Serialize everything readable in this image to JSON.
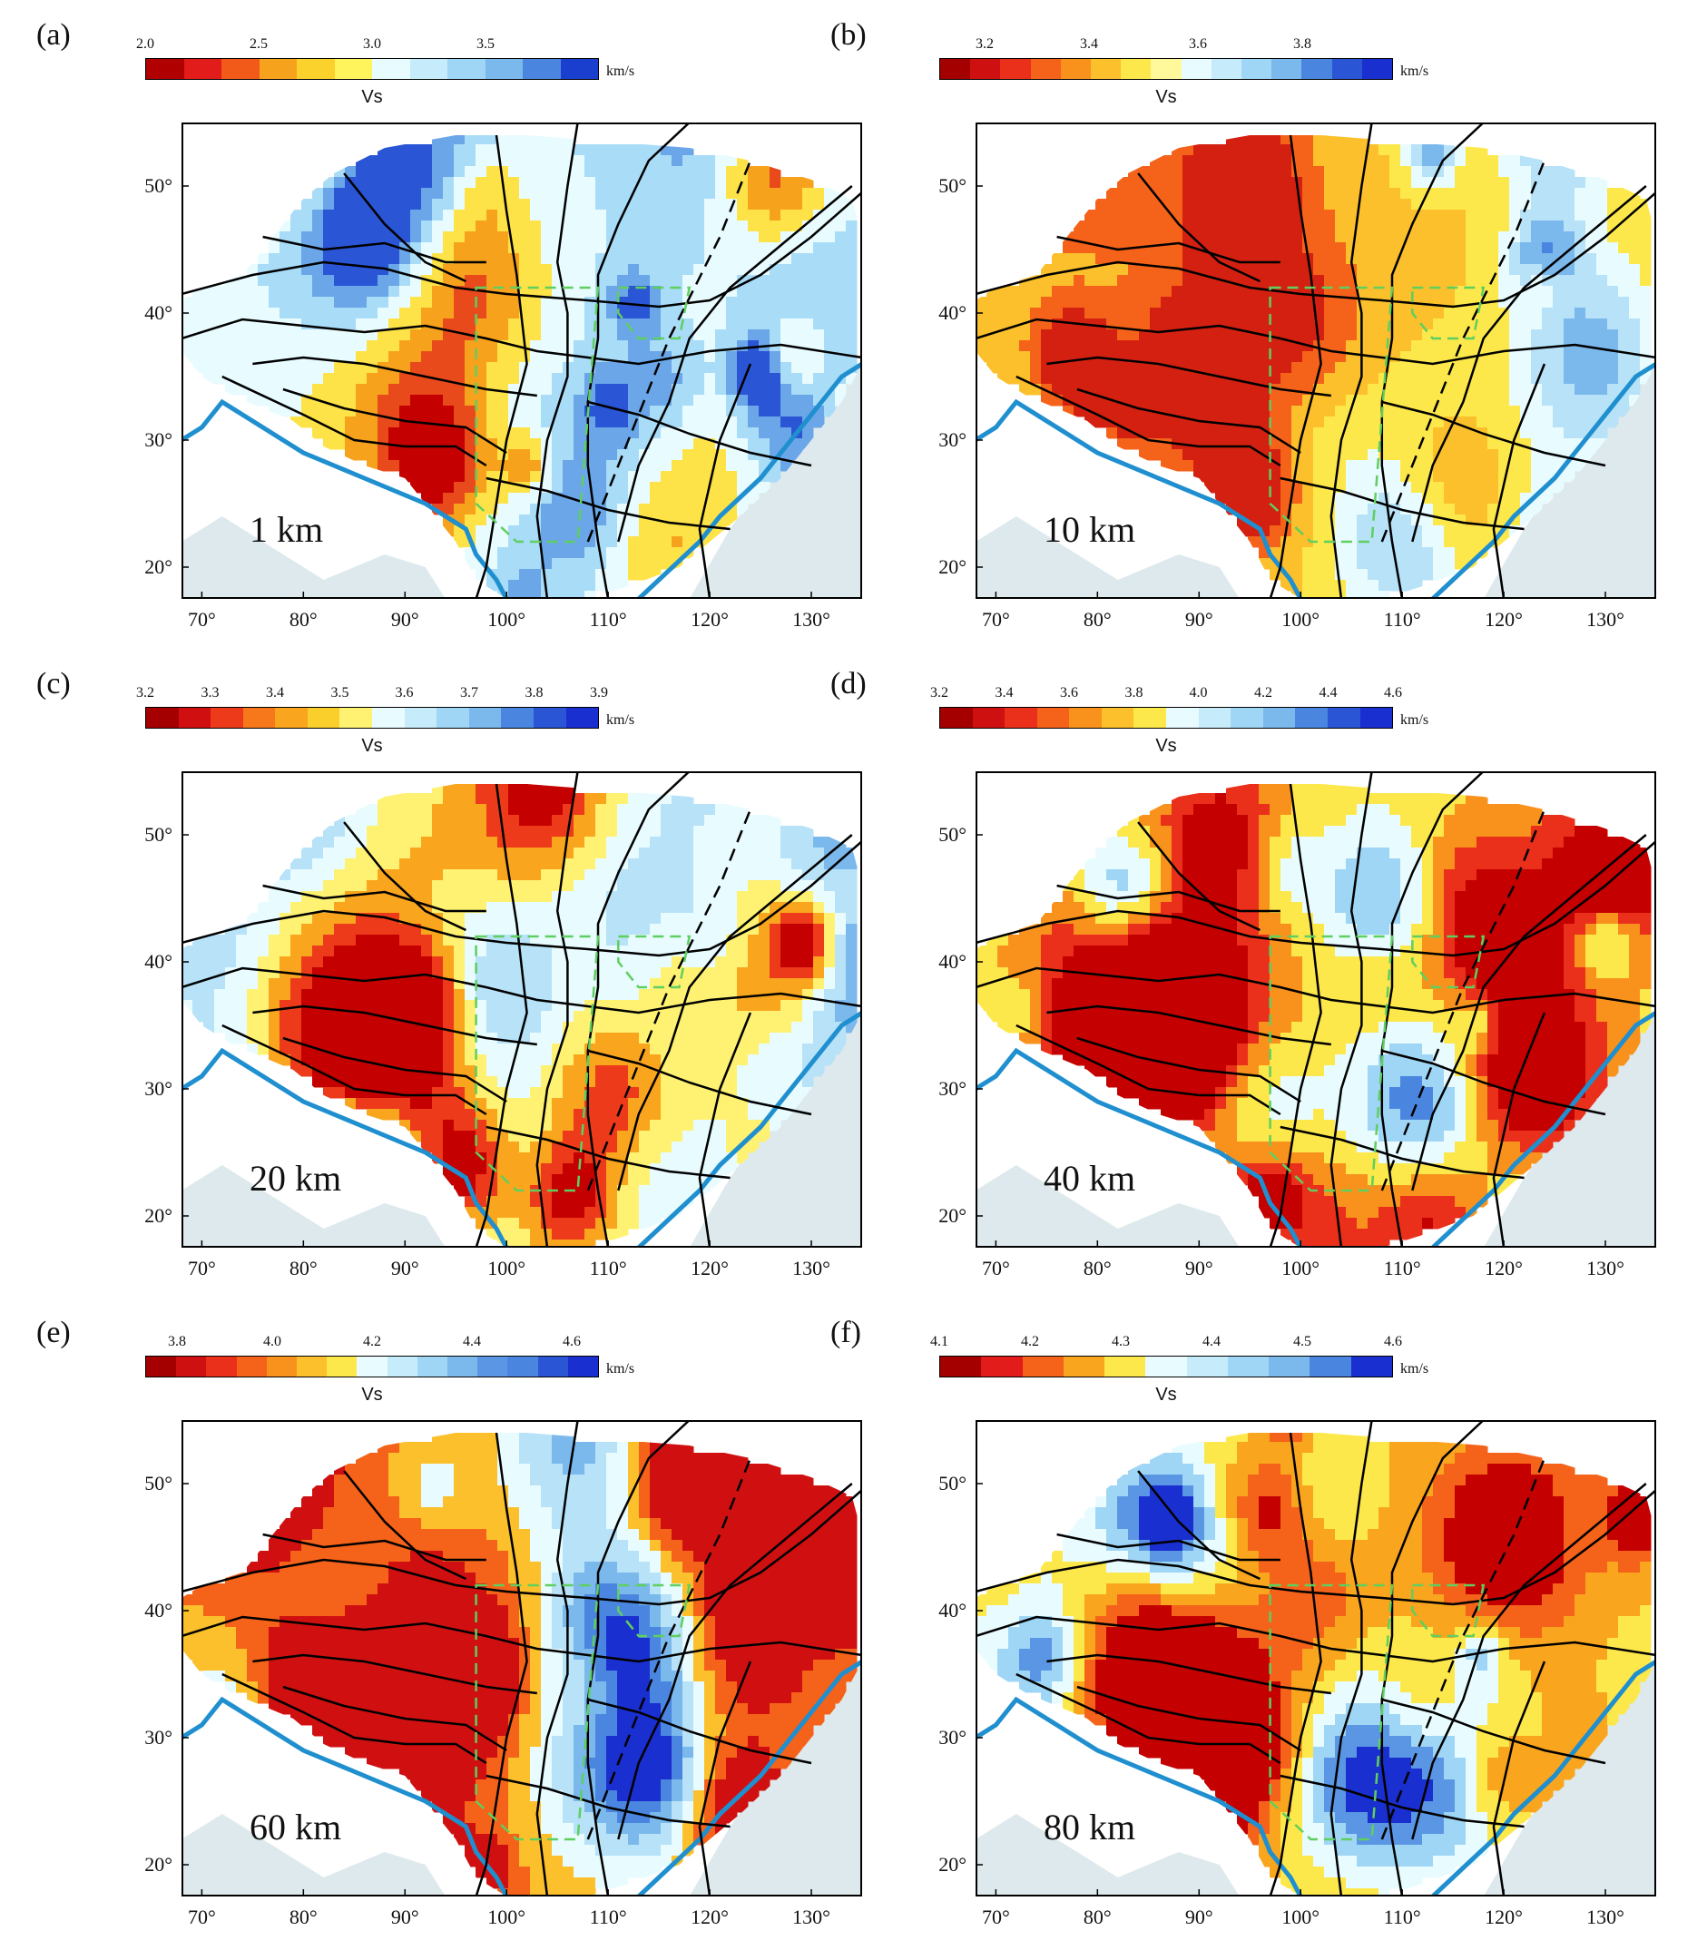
{
  "map_axes": {
    "lat_ticks": [
      "50°",
      "40°",
      "30°",
      "20°"
    ],
    "lon_ticks": [
      "70°",
      "80°",
      "90°",
      "100°",
      "110°",
      "120°",
      "130°"
    ],
    "lon_range": [
      68,
      135
    ],
    "lat_range": [
      17.5,
      55
    ]
  },
  "colors": {
    "ocean": "#ffffff",
    "land_outside": "#dde9ec",
    "coastline": "#1f8fcf",
    "faults": "#000000",
    "green_dashed": "#5fcf5f"
  },
  "panels": [
    {
      "label": "(a)",
      "depth": "1 km",
      "colorbar": {
        "ticks": [
          "2.0",
          "2.5",
          "3.0",
          "3.5"
        ],
        "tick_positions": [
          0,
          0.25,
          0.5,
          0.75
        ],
        "unit": "km/s",
        "title": "Vs",
        "colors": [
          "#b00000",
          "#e21b1b",
          "#f25a1a",
          "#f7a21c",
          "#fbd12b",
          "#fff45c",
          "#e8fbff",
          "#c6ecfb",
          "#9fd6f5",
          "#7bb8ec",
          "#4a86df",
          "#1a3fcf"
        ]
      },
      "field_palette": [
        "#c40000",
        "#e84a1c",
        "#f7a21c",
        "#fde347",
        "#e8fbff",
        "#a9dcf7",
        "#6aa6e8",
        "#2a55d5"
      ],
      "field_bias": 0.62
    },
    {
      "label": "(b)",
      "depth": "10 km",
      "colorbar": {
        "ticks": [
          "3.2",
          "3.4",
          "3.6",
          "3.8"
        ],
        "tick_positions": [
          0.1,
          0.33,
          0.57,
          0.8
        ],
        "unit": "km/s",
        "title": "Vs",
        "colors": [
          "#a50000",
          "#cf1010",
          "#ea2f1a",
          "#f5621a",
          "#f8921c",
          "#fbc02b",
          "#fde84b",
          "#fff99c",
          "#e8fbff",
          "#c6ecfb",
          "#9fd6f5",
          "#7bb8ec",
          "#4a86df",
          "#2a55d5",
          "#1a2fcf"
        ]
      },
      "field_palette": [
        "#d32010",
        "#f5621a",
        "#fbc02b",
        "#fde84b",
        "#e8fbff",
        "#b7e2f8",
        "#7bb8ec",
        "#4a86df"
      ],
      "field_bias": 0.35
    },
    {
      "label": "(c)",
      "depth": "20 km",
      "colorbar": {
        "ticks": [
          "3.2",
          "3.3",
          "3.4",
          "3.5",
          "3.6",
          "3.7",
          "3.8",
          "3.9"
        ],
        "tick_positions": [
          0,
          0.143,
          0.286,
          0.429,
          0.571,
          0.714,
          0.857,
          1
        ],
        "unit": "km/s",
        "title": "Vs",
        "colors": [
          "#a50000",
          "#d01010",
          "#ec3a1a",
          "#f6781b",
          "#f9a51e",
          "#fbcf2b",
          "#fff272",
          "#e8fbff",
          "#c6ecfb",
          "#9fd6f5",
          "#7bb8ec",
          "#4a86df",
          "#2a55d5",
          "#1a2fcf"
        ]
      },
      "field_palette": [
        "#c40000",
        "#ec3a1a",
        "#f9a51e",
        "#fff272",
        "#e8fbff",
        "#b7e2f8",
        "#7bb8ec",
        "#3a6fd8"
      ],
      "field_bias": 0.45
    },
    {
      "label": "(d)",
      "depth": "40 km",
      "colorbar": {
        "ticks": [
          "3.2",
          "3.4",
          "3.6",
          "3.8",
          "4.0",
          "4.2",
          "4.4",
          "4.6"
        ],
        "tick_positions": [
          0,
          0.143,
          0.286,
          0.429,
          0.571,
          0.714,
          0.857,
          1
        ],
        "unit": "km/s",
        "title": "Vs",
        "colors": [
          "#a50000",
          "#cf1010",
          "#ea2f1a",
          "#f5621a",
          "#f8921c",
          "#fbc02b",
          "#fde84b",
          "#e8fbff",
          "#c6ecfb",
          "#9fd6f5",
          "#7bb8ec",
          "#4a86df",
          "#2a55d5",
          "#1a2fcf"
        ]
      },
      "field_palette": [
        "#c40000",
        "#ea2f1a",
        "#f8921c",
        "#fde84b",
        "#e8fbff",
        "#9fd6f5",
        "#4a86df",
        "#1a2fcf"
      ],
      "field_bias": 0.42
    },
    {
      "label": "(e)",
      "depth": "60 km",
      "colorbar": {
        "ticks": [
          "3.8",
          "4.0",
          "4.2",
          "4.4",
          "4.6"
        ],
        "tick_positions": [
          0.07,
          0.28,
          0.5,
          0.72,
          0.94
        ],
        "unit": "km/s",
        "title": "Vs",
        "colors": [
          "#a50000",
          "#cf1010",
          "#ea2f1a",
          "#f5621a",
          "#f8921c",
          "#fbc02b",
          "#fde84b",
          "#e8fbff",
          "#c6ecfb",
          "#9fd6f5",
          "#7bb8ec",
          "#5a96e3",
          "#4a86df",
          "#2a55d5",
          "#1a2fcf"
        ]
      },
      "field_palette": [
        "#d01010",
        "#f5621a",
        "#fbc02b",
        "#e8fbff",
        "#b7e2f8",
        "#7bb8ec",
        "#4a86df",
        "#1a2fcf"
      ],
      "field_bias": 0.25
    },
    {
      "label": "(f)",
      "depth": "80 km",
      "colorbar": {
        "ticks": [
          "4.1",
          "4.2",
          "4.3",
          "4.4",
          "4.5",
          "4.6"
        ],
        "tick_positions": [
          0,
          0.2,
          0.4,
          0.6,
          0.8,
          1
        ],
        "unit": "km/s",
        "title": "Vs",
        "colors": [
          "#a50000",
          "#e21b1b",
          "#f5621a",
          "#f9a51e",
          "#fde84b",
          "#e8fbff",
          "#c6ecfb",
          "#9fd6f5",
          "#7bb8ec",
          "#4a86df",
          "#1a2fcf"
        ]
      },
      "field_palette": [
        "#c40000",
        "#f5621a",
        "#f9a51e",
        "#fde84b",
        "#e8fbff",
        "#9fd6f5",
        "#5a96e3",
        "#1a2fcf"
      ],
      "field_bias": 0.38
    }
  ]
}
